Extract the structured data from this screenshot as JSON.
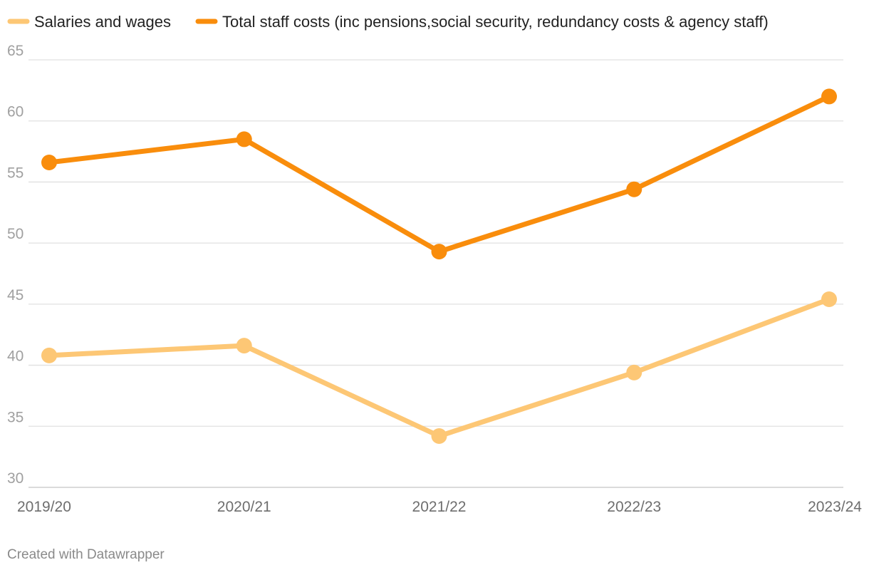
{
  "chart_data": {
    "type": "line",
    "categories": [
      "2019/20",
      "2020/21",
      "2021/22",
      "2022/23",
      "2023/24"
    ],
    "series": [
      {
        "name": "Salaries and wages",
        "color": "#fdc775",
        "values": [
          40.8,
          41.6,
          34.2,
          39.4,
          45.4
        ]
      },
      {
        "name": "Total staff costs (inc pensions,social security, redundancy costs & agency staff)",
        "color": "#f98d0c",
        "values": [
          56.6,
          58.5,
          49.3,
          54.4,
          62.0
        ]
      }
    ],
    "yticks": [
      "30",
      "35",
      "40",
      "45",
      "50",
      "55",
      "60",
      "65"
    ],
    "ylim": [
      30,
      65
    ],
    "grid": true,
    "legend_position": "top-left",
    "title": "",
    "xlabel": "",
    "ylabel": ""
  },
  "footer": {
    "credit": "Created with Datawrapper"
  }
}
